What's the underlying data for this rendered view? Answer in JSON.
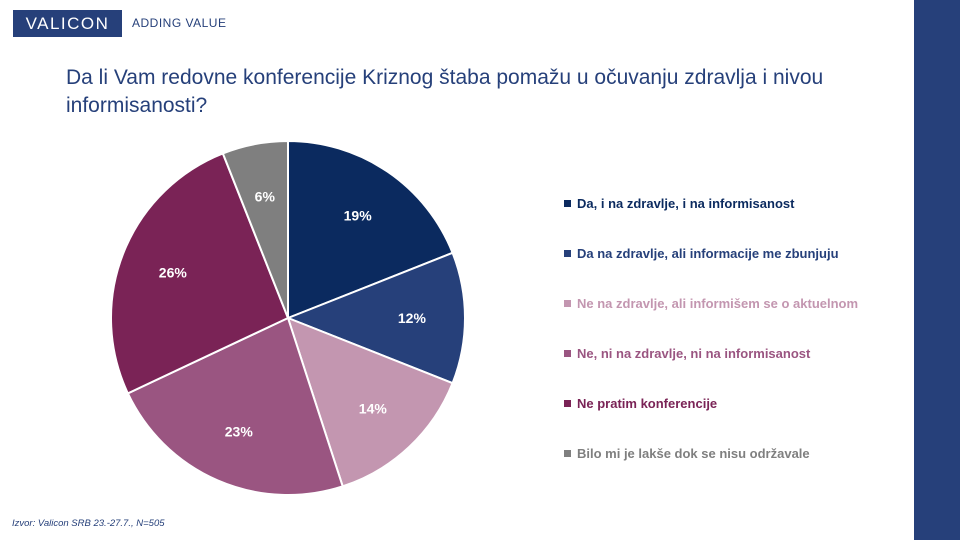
{
  "brand": {
    "name": "VALICON",
    "tagline": "ADDING VALUE"
  },
  "title": "Da li Vam redovne konferencije Kriznog štaba pomažu u očuvanju zdravlja i nivou informisanosti?",
  "source": "Izvor: Valicon SRB 23.-27.7., N=505",
  "chart_data": {
    "type": "pie",
    "title": "Da li Vam redovne konferencije Kriznog štaba pomažu u očuvanju zdravlja i nivou informisanosti?",
    "slices": [
      {
        "label": "Da, i na zdravlje, i na informisanost",
        "value": 19,
        "display": "19%",
        "color": "#0b2a5f",
        "label_color": "#ffffff"
      },
      {
        "label": "Da na zdravlje, ali informacije me zbunjuju",
        "value": 12,
        "display": "12%",
        "color": "#26407a",
        "label_color": "#ffffff"
      },
      {
        "label": "Ne na zdravlje, ali informišem se o aktuelnom",
        "value": 14,
        "display": "14%",
        "color": "#c396b0",
        "label_color": "#ffffff"
      },
      {
        "label": "Ne, ni na zdravlje, ni na informisanost",
        "value": 23,
        "display": "23%",
        "color": "#9a5581",
        "label_color": "#ffffff"
      },
      {
        "label": "Ne pratim konferencije",
        "value": 26,
        "display": "26%",
        "color": "#7a2356",
        "label_color": "#ffffff"
      },
      {
        "label": "Bilo mi je lakše dok se nisu održavale",
        "value": 6,
        "display": "6%",
        "color": "#7f7f7f",
        "label_color": "#ffffff"
      }
    ],
    "legend": {
      "position": "right"
    }
  },
  "legend_text_colors": [
    "#0b2a5f",
    "#26407a",
    "#c396b0",
    "#9a5581",
    "#7a2356",
    "#7f7f7f"
  ]
}
